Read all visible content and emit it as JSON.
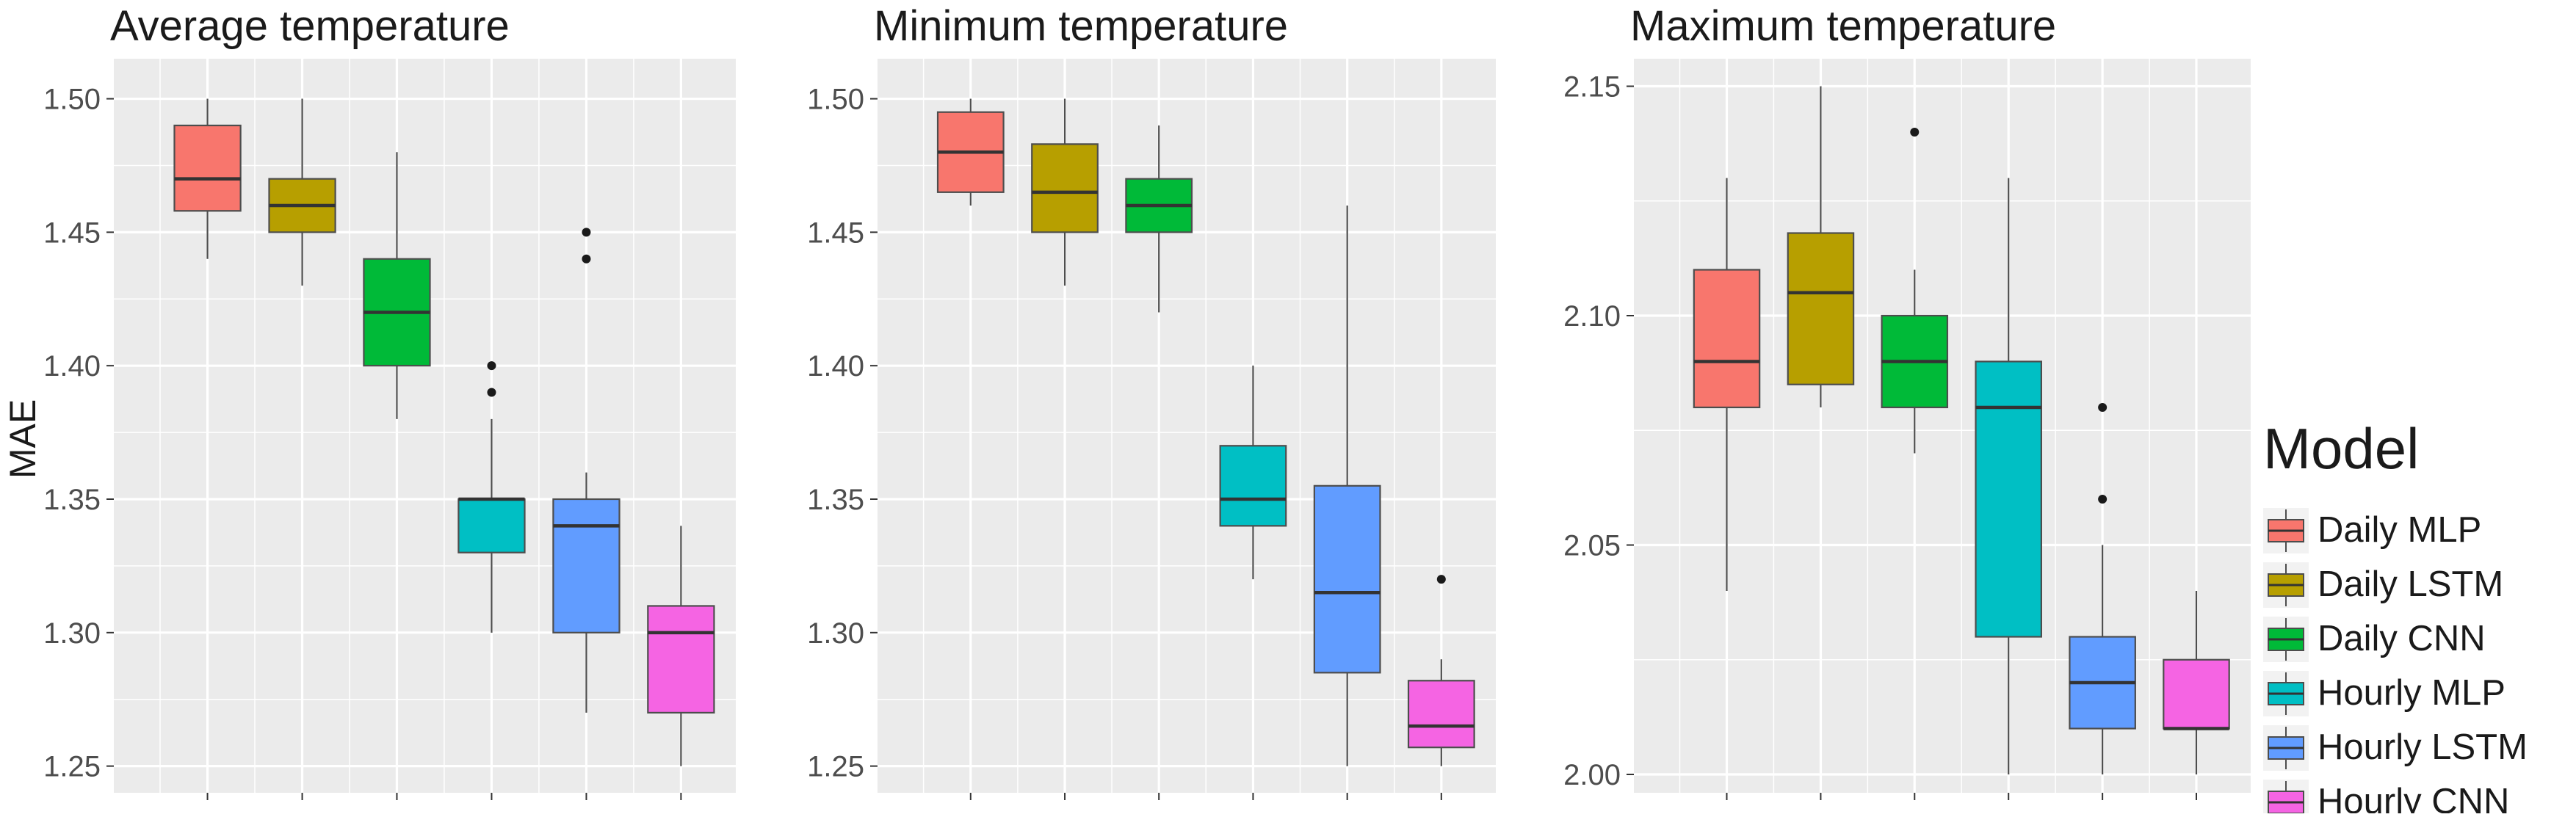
{
  "y_axis_label": "MAE",
  "legend": {
    "title": "Model",
    "items": [
      {
        "label": "Daily MLP",
        "color": "#F8766D"
      },
      {
        "label": "Daily LSTM",
        "color": "#B79F00"
      },
      {
        "label": "Daily CNN",
        "color": "#00BA38"
      },
      {
        "label": "Hourly MLP",
        "color": "#00BFC4"
      },
      {
        "label": "Hourly LSTM",
        "color": "#619CFF"
      },
      {
        "label": "Hourly CNN",
        "color": "#F564E3"
      }
    ]
  },
  "colors": {
    "panel_bg": "#EBEBEB",
    "grid": "#FFFFFF",
    "text": "#333333",
    "median": "#333333",
    "whisker": "#4D4D4D",
    "outlier": "#1A1A1A"
  },
  "chart_data": [
    {
      "type": "boxplot",
      "title": "Average temperature",
      "xlabel": "",
      "ylabel": "MAE",
      "ylim": [
        1.24,
        1.515
      ],
      "y_ticks": [
        1.25,
        1.3,
        1.35,
        1.4,
        1.45,
        1.5
      ],
      "y_tick_labels": [
        "1.25",
        "1.30",
        "1.35",
        "1.40",
        "1.45",
        "1.50"
      ],
      "boxes": [
        {
          "name": "Daily MLP",
          "whisker_low": 1.44,
          "q1": 1.458,
          "median": 1.47,
          "q3": 1.49,
          "whisker_high": 1.5,
          "outliers": []
        },
        {
          "name": "Daily LSTM",
          "whisker_low": 1.43,
          "q1": 1.45,
          "median": 1.46,
          "q3": 1.47,
          "whisker_high": 1.5,
          "outliers": []
        },
        {
          "name": "Daily CNN",
          "whisker_low": 1.38,
          "q1": 1.4,
          "median": 1.42,
          "q3": 1.44,
          "whisker_high": 1.48,
          "outliers": []
        },
        {
          "name": "Hourly MLP",
          "whisker_low": 1.3,
          "q1": 1.33,
          "median": 1.35,
          "q3": 1.35,
          "whisker_high": 1.38,
          "outliers": [
            1.39,
            1.4
          ]
        },
        {
          "name": "Hourly LSTM",
          "whisker_low": 1.27,
          "q1": 1.3,
          "median": 1.34,
          "q3": 1.35,
          "whisker_high": 1.36,
          "outliers": [
            1.44,
            1.45
          ]
        },
        {
          "name": "Hourly CNN",
          "whisker_low": 1.25,
          "q1": 1.27,
          "median": 1.3,
          "q3": 1.31,
          "whisker_high": 1.34,
          "outliers": []
        }
      ]
    },
    {
      "type": "boxplot",
      "title": "Minimum temperature",
      "xlabel": "",
      "ylabel": "",
      "ylim": [
        1.24,
        1.515
      ],
      "y_ticks": [
        1.25,
        1.3,
        1.35,
        1.4,
        1.45,
        1.5
      ],
      "y_tick_labels": [
        "1.25",
        "1.30",
        "1.35",
        "1.40",
        "1.45",
        "1.50"
      ],
      "boxes": [
        {
          "name": "Daily MLP",
          "whisker_low": 1.46,
          "q1": 1.465,
          "median": 1.48,
          "q3": 1.495,
          "whisker_high": 1.5,
          "outliers": []
        },
        {
          "name": "Daily LSTM",
          "whisker_low": 1.43,
          "q1": 1.45,
          "median": 1.465,
          "q3": 1.483,
          "whisker_high": 1.5,
          "outliers": []
        },
        {
          "name": "Daily CNN",
          "whisker_low": 1.42,
          "q1": 1.45,
          "median": 1.46,
          "q3": 1.47,
          "whisker_high": 1.49,
          "outliers": []
        },
        {
          "name": "Hourly MLP",
          "whisker_low": 1.32,
          "q1": 1.34,
          "median": 1.35,
          "q3": 1.37,
          "whisker_high": 1.4,
          "outliers": []
        },
        {
          "name": "Hourly LSTM",
          "whisker_low": 1.25,
          "q1": 1.285,
          "median": 1.315,
          "q3": 1.355,
          "whisker_high": 1.46,
          "outliers": []
        },
        {
          "name": "Hourly CNN",
          "whisker_low": 1.25,
          "q1": 1.257,
          "median": 1.265,
          "q3": 1.282,
          "whisker_high": 1.29,
          "outliers": [
            1.32
          ]
        }
      ]
    },
    {
      "type": "boxplot",
      "title": "Maximum temperature",
      "xlabel": "",
      "ylabel": "",
      "ylim": [
        1.996,
        2.156
      ],
      "y_ticks": [
        2.0,
        2.05,
        2.1,
        2.15
      ],
      "y_tick_labels": [
        "2.00",
        "2.05",
        "2.10",
        "2.15"
      ],
      "boxes": [
        {
          "name": "Daily MLP",
          "whisker_low": 2.04,
          "q1": 2.08,
          "median": 2.09,
          "q3": 2.11,
          "whisker_high": 2.13,
          "outliers": []
        },
        {
          "name": "Daily LSTM",
          "whisker_low": 2.08,
          "q1": 2.085,
          "median": 2.105,
          "q3": 2.118,
          "whisker_high": 2.15,
          "outliers": []
        },
        {
          "name": "Daily CNN",
          "whisker_low": 2.07,
          "q1": 2.08,
          "median": 2.09,
          "q3": 2.1,
          "whisker_high": 2.11,
          "outliers": [
            2.14
          ]
        },
        {
          "name": "Hourly MLP",
          "whisker_low": 2.0,
          "q1": 2.03,
          "median": 2.08,
          "q3": 2.09,
          "whisker_high": 2.13,
          "outliers": []
        },
        {
          "name": "Hourly LSTM",
          "whisker_low": 2.0,
          "q1": 2.01,
          "median": 2.02,
          "q3": 2.03,
          "whisker_high": 2.05,
          "outliers": [
            2.06,
            2.08
          ]
        },
        {
          "name": "Hourly CNN",
          "whisker_low": 2.0,
          "q1": 2.01,
          "median": 2.01,
          "q3": 2.025,
          "whisker_high": 2.04,
          "outliers": []
        }
      ]
    }
  ]
}
